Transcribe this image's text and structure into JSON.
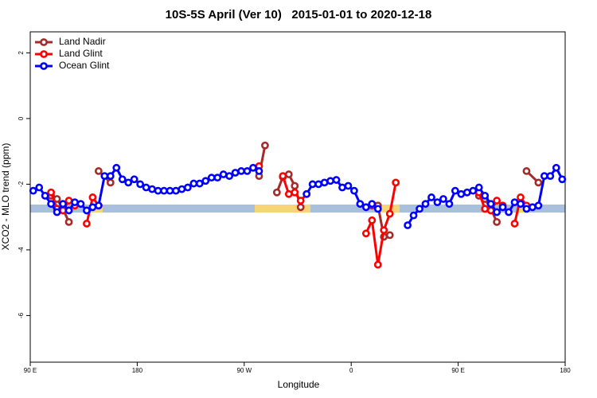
{
  "chart_data": {
    "type": "line",
    "title": "10S-5S April (Ver 10)   2015-01-01 to 2020-12-18",
    "xlabel": "Longitude",
    "ylabel": "XCO2 - MLO trend (ppm)",
    "xlim": [
      90,
      540
    ],
    "xticks": [
      {
        "value": 90,
        "label": "90 E"
      },
      180,
      {
        "value": 270,
        "label": "90 W"
      },
      {
        "value": 360,
        "label": "0"
      },
      {
        "value": 450,
        "label": "90 E"
      },
      {
        "value": 540,
        "label": "180"
      }
    ],
    "ylim": [
      -7.42,
      2.64
    ],
    "yticks": [
      2,
      0,
      -2,
      -4,
      -6
    ],
    "legend": "top-left",
    "series": [
      {
        "name": "Land Nadir",
        "color": "#a52a2a",
        "x": [
          107.5,
          112.5,
          117.5,
          122.5,
          127.5,
          147.5,
          157.5,
          162.5,
          282.5,
          287.5,
          292.5,
          297.5,
          302.5,
          307.5,
          312.5,
          317.5,
          322.5,
          377.5,
          382.5,
          387.5,
          392.5,
          397.5,
          467.5,
          472.5,
          477.5,
          482.5,
          487.5,
          507.5,
          517.5
        ],
        "values": [
          -2.35,
          -2.45,
          -2.75,
          -3.15,
          null,
          -1.6,
          -1.95,
          null,
          -1.75,
          -0.82,
          null,
          -2.25,
          -1.78,
          -1.7,
          -2.05,
          -2.7,
          null,
          -2.65,
          -2.65,
          -3.6,
          -3.55,
          null,
          -2.35,
          -2.45,
          -2.75,
          -3.15,
          null,
          -1.6,
          -1.95
        ]
      },
      {
        "name": "Land Glint",
        "color": "#ff0000",
        "x": [
          107.5,
          112.5,
          117.5,
          122.5,
          127.5,
          132.5,
          137.5,
          142.5,
          147.5,
          152.5,
          282.5,
          287.5,
          302.5,
          307.5,
          312.5,
          317.5,
          322.5,
          327.5,
          372.5,
          377.5,
          382.5,
          387.5,
          392.5,
          397.5,
          402.5,
          467.5,
          472.5,
          477.5,
          482.5,
          487.5,
          492.5,
          497.5,
          502.5,
          507.5
        ],
        "values": [
          -2.25,
          -2.75,
          -2.8,
          -2.5,
          -2.65,
          null,
          -3.2,
          -2.4,
          -2.65,
          null,
          -1.45,
          null,
          -1.75,
          -2.3,
          -2.25,
          -2.5,
          -2.3,
          null,
          -3.5,
          -3.1,
          -4.45,
          -3.4,
          -2.9,
          -1.95,
          null,
          -2.25,
          -2.75,
          -2.8,
          -2.5,
          -2.65,
          null,
          -3.2,
          -2.4,
          -2.65
        ]
      },
      {
        "name": "Ocean Glint",
        "color": "#0000ff",
        "x": [
          92.5,
          97.5,
          102.5,
          107.5,
          112.5,
          117.5,
          122.5,
          127.5,
          132.5,
          137.5,
          142.5,
          147.5,
          152.5,
          157.5,
          162.5,
          167.5,
          172.5,
          177.5,
          182.5,
          187.5,
          192.5,
          197.5,
          202.5,
          207.5,
          212.5,
          217.5,
          222.5,
          227.5,
          232.5,
          237.5,
          242.5,
          247.5,
          252.5,
          257.5,
          262.5,
          267.5,
          272.5,
          277.5,
          282.5,
          287.5,
          322.5,
          327.5,
          332.5,
          337.5,
          342.5,
          347.5,
          352.5,
          357.5,
          362.5,
          367.5,
          372.5,
          377.5,
          382.5,
          387.5,
          407.5,
          412.5,
          417.5,
          422.5,
          427.5,
          432.5,
          437.5,
          442.5,
          447.5,
          452.5,
          457.5,
          462.5,
          467.5,
          472.5,
          477.5,
          482.5,
          487.5,
          492.5,
          497.5,
          502.5,
          507.5,
          512.5,
          517.5,
          522.5,
          527.5,
          532.5,
          537.5
        ],
        "values": [
          -2.2,
          -2.1,
          -2.35,
          -2.6,
          -2.85,
          -2.6,
          -2.8,
          -2.55,
          -2.6,
          -2.8,
          -2.7,
          -2.65,
          -1.75,
          -1.75,
          -1.5,
          -1.85,
          -1.95,
          -1.85,
          -2.0,
          -2.1,
          -2.15,
          -2.2,
          -2.2,
          -2.2,
          -2.2,
          -2.15,
          -2.1,
          -1.98,
          -1.98,
          -1.9,
          -1.8,
          -1.8,
          -1.7,
          -1.75,
          -1.65,
          -1.6,
          -1.6,
          -1.5,
          -1.6,
          null,
          -2.3,
          -2.0,
          -2.0,
          -1.95,
          -1.9,
          -1.87,
          -2.1,
          -2.05,
          -2.2,
          -2.6,
          -2.7,
          -2.6,
          -2.75,
          null,
          -3.25,
          -2.95,
          -2.75,
          -2.6,
          -2.4,
          -2.55,
          -2.45,
          -2.6,
          -2.2,
          -2.3,
          -2.25,
          -2.2,
          -2.1,
          -2.35,
          -2.6,
          -2.85,
          -2.7,
          -2.85,
          -2.55,
          -2.6,
          -2.75,
          -2.7,
          -2.65,
          -1.75,
          -1.75,
          -1.5,
          -1.85
        ]
      }
    ]
  }
}
